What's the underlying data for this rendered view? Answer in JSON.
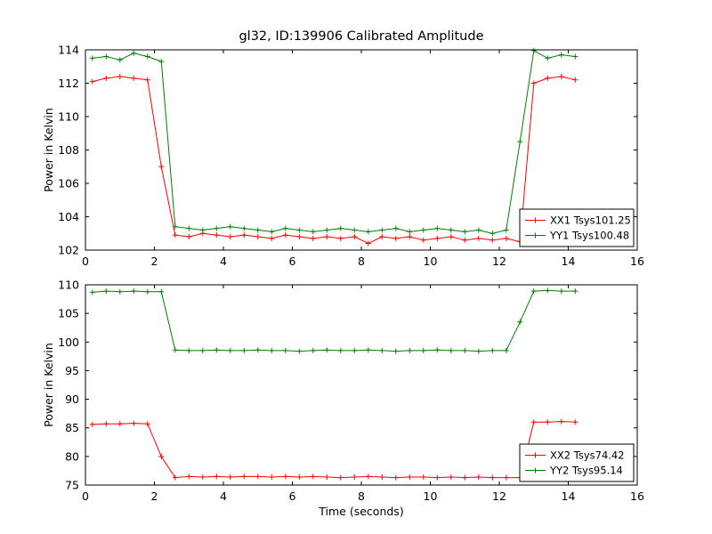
{
  "figure": {
    "title": "gl32, ID:139906 Calibrated Amplitude",
    "xlabel": "Time (seconds)",
    "background": "#ffffff"
  },
  "colors": {
    "red_series": "#ff0000",
    "green_series": "#008000",
    "axis": "#000000",
    "legend_background": "#ffffff"
  },
  "chart_data": [
    {
      "name": "top-amplitude-plot",
      "type": "line",
      "title": "gl32, ID:139906 Calibrated Amplitude",
      "xlabel": "",
      "ylabel": "Power in Kelvin",
      "xlim": [
        0,
        16
      ],
      "ylim": [
        102,
        114
      ],
      "xticks": [
        0,
        2,
        4,
        6,
        8,
        10,
        12,
        14,
        16
      ],
      "yticks": [
        102,
        104,
        106,
        108,
        110,
        112,
        114
      ],
      "grid": false,
      "marker": "plus",
      "legend_position": "lower right",
      "x": [
        0.2,
        0.6,
        1.0,
        1.4,
        1.8,
        2.2,
        2.6,
        3.0,
        3.4,
        3.8,
        4.2,
        4.6,
        5.0,
        5.4,
        5.8,
        6.2,
        6.6,
        7.0,
        7.4,
        7.8,
        8.2,
        8.6,
        9.0,
        9.4,
        9.8,
        10.2,
        10.6,
        11.0,
        11.4,
        11.8,
        12.2,
        12.6,
        13.0,
        13.4,
        13.8,
        14.2
      ],
      "series": [
        {
          "name": "XX1 Tsys101.25",
          "color": "#ff0000",
          "values": [
            112.1,
            112.3,
            112.4,
            112.3,
            112.2,
            107.0,
            102.9,
            102.8,
            103.0,
            102.9,
            102.8,
            102.9,
            102.8,
            102.7,
            102.9,
            102.8,
            102.7,
            102.8,
            102.7,
            102.8,
            102.4,
            102.8,
            102.7,
            102.8,
            102.6,
            102.7,
            102.8,
            102.6,
            102.7,
            102.6,
            102.7,
            102.5,
            112.0,
            112.3,
            112.4,
            112.2
          ]
        },
        {
          "name": "YY1 Tsys100.48",
          "color": "#008000",
          "values": [
            113.5,
            113.6,
            113.4,
            113.8,
            113.6,
            113.3,
            103.4,
            103.3,
            103.2,
            103.3,
            103.4,
            103.3,
            103.2,
            103.1,
            103.3,
            103.2,
            103.1,
            103.2,
            103.3,
            103.2,
            103.1,
            103.2,
            103.3,
            103.1,
            103.2,
            103.3,
            103.2,
            103.1,
            103.2,
            103.0,
            103.2,
            108.5,
            113.95,
            113.5,
            113.7,
            113.6
          ]
        }
      ]
    },
    {
      "name": "bottom-amplitude-plot",
      "type": "line",
      "title": "",
      "xlabel": "Time (seconds)",
      "ylabel": "Power in Kelvin",
      "xlim": [
        0,
        16
      ],
      "ylim": [
        75,
        110
      ],
      "xticks": [
        0,
        2,
        4,
        6,
        8,
        10,
        12,
        14,
        16
      ],
      "yticks": [
        75,
        80,
        85,
        90,
        95,
        100,
        105,
        110
      ],
      "grid": false,
      "marker": "plus",
      "legend_position": "lower right",
      "x": [
        0.2,
        0.6,
        1.0,
        1.4,
        1.8,
        2.2,
        2.6,
        3.0,
        3.4,
        3.8,
        4.2,
        4.6,
        5.0,
        5.4,
        5.8,
        6.2,
        6.6,
        7.0,
        7.4,
        7.8,
        8.2,
        8.6,
        9.0,
        9.4,
        9.8,
        10.2,
        10.6,
        11.0,
        11.4,
        11.8,
        12.2,
        12.6,
        13.0,
        13.4,
        13.8,
        14.2
      ],
      "series": [
        {
          "name": "XX2 Tsys74.42",
          "color": "#ff0000",
          "values": [
            85.6,
            85.7,
            85.7,
            85.8,
            85.7,
            80.0,
            76.3,
            76.5,
            76.4,
            76.5,
            76.4,
            76.5,
            76.5,
            76.4,
            76.5,
            76.4,
            76.5,
            76.4,
            76.3,
            76.4,
            76.5,
            76.4,
            76.3,
            76.4,
            76.4,
            76.3,
            76.4,
            76.3,
            76.4,
            76.3,
            76.3,
            76.3,
            86.0,
            86.0,
            86.1,
            86.0
          ]
        },
        {
          "name": "YY2 Tsys95.14",
          "color": "#008000",
          "values": [
            108.7,
            108.9,
            108.8,
            108.9,
            108.8,
            108.8,
            98.6,
            98.5,
            98.5,
            98.6,
            98.5,
            98.5,
            98.6,
            98.5,
            98.5,
            98.4,
            98.5,
            98.6,
            98.5,
            98.5,
            98.6,
            98.5,
            98.4,
            98.5,
            98.5,
            98.6,
            98.5,
            98.5,
            98.4,
            98.5,
            98.5,
            103.5,
            108.9,
            109.0,
            108.9,
            108.9
          ]
        }
      ]
    }
  ]
}
